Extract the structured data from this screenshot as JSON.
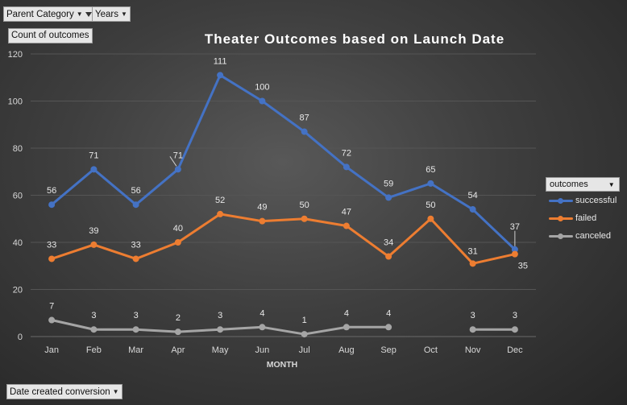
{
  "filters": {
    "parent_category": "Parent Category",
    "years": "Years",
    "value_field": "Count of outcomes",
    "axis_field": "Date created conversion"
  },
  "legend": {
    "title": "outcomes",
    "items": [
      "successful",
      "failed",
      "canceled"
    ]
  },
  "colors": {
    "successful": "#4472c4",
    "failed": "#ed7d31",
    "canceled": "#a5a5a5"
  },
  "chart_data": {
    "type": "line",
    "title": "Theater Outcomes based on Launch Date",
    "xlabel": "MONTH",
    "ylabel": "",
    "ylim": [
      0,
      120
    ],
    "yticks": [
      0,
      20,
      40,
      60,
      80,
      100,
      120
    ],
    "grid": true,
    "legend_position": "right",
    "categories": [
      "Jan",
      "Feb",
      "Mar",
      "Apr",
      "May",
      "Jun",
      "Jul",
      "Aug",
      "Sep",
      "Oct",
      "Nov",
      "Dec"
    ],
    "series": [
      {
        "name": "successful",
        "values": [
          56,
          71,
          56,
          71,
          111,
          100,
          87,
          72,
          59,
          65,
          54,
          37
        ]
      },
      {
        "name": "failed",
        "values": [
          33,
          39,
          33,
          40,
          52,
          49,
          50,
          47,
          34,
          50,
          31,
          35
        ]
      },
      {
        "name": "canceled",
        "values": [
          7,
          3,
          3,
          2,
          3,
          4,
          1,
          4,
          4,
          null,
          3,
          3
        ]
      }
    ]
  }
}
